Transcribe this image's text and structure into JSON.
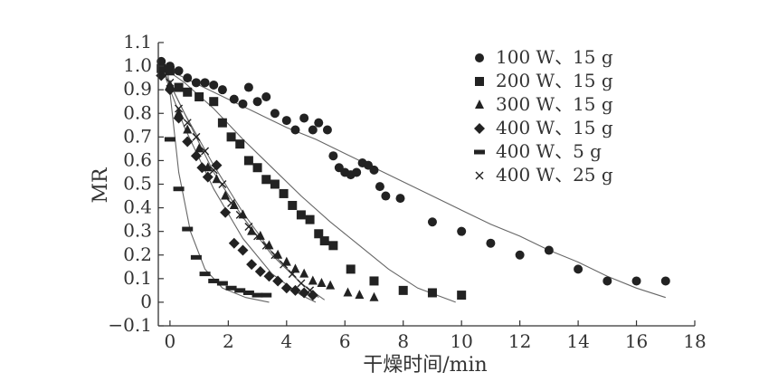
{
  "chart_data": {
    "type": "scatter",
    "title": "",
    "xlabel": "干燥时间/min",
    "ylabel": "MR",
    "xlim": [
      -0.4,
      18
    ],
    "ylim": [
      -0.1,
      1.1
    ],
    "xticks": [
      0,
      2,
      4,
      6,
      8,
      10,
      12,
      14,
      16,
      18
    ],
    "xtick_labels": [
      "0",
      "2",
      "4",
      "6",
      "8",
      "10",
      "12",
      "14",
      "16",
      "18"
    ],
    "yticks": [
      -0.1,
      0,
      0.1,
      0.2,
      0.3,
      0.4,
      0.5,
      0.6,
      0.7,
      0.8,
      0.9,
      1.0,
      1.1
    ],
    "ytick_labels": [
      "−0.1",
      "0",
      "0.1",
      "0.2",
      "0.3",
      "0.4",
      "0.5",
      "0.6",
      "0.7",
      "0.8",
      "0.9",
      "1.0",
      "1.1"
    ],
    "grid": false,
    "legend_position": "top-right",
    "series": [
      {
        "name": "100 W、15 g",
        "marker": "circle",
        "points": [
          [
            -0.3,
            1.02
          ],
          [
            0,
            1.0
          ],
          [
            0.3,
            0.98
          ],
          [
            0.6,
            0.95
          ],
          [
            0.9,
            0.93
          ],
          [
            1.2,
            0.93
          ],
          [
            1.5,
            0.92
          ],
          [
            1.8,
            0.9
          ],
          [
            2.2,
            0.86
          ],
          [
            2.5,
            0.84
          ],
          [
            2.7,
            0.91
          ],
          [
            3.0,
            0.85
          ],
          [
            3.3,
            0.87
          ],
          [
            3.6,
            0.8
          ],
          [
            4.0,
            0.77
          ],
          [
            4.3,
            0.73
          ],
          [
            4.6,
            0.78
          ],
          [
            4.9,
            0.73
          ],
          [
            5.1,
            0.76
          ],
          [
            5.4,
            0.73
          ],
          [
            5.6,
            0.62
          ],
          [
            5.8,
            0.57
          ],
          [
            6.0,
            0.55
          ],
          [
            6.2,
            0.54
          ],
          [
            6.4,
            0.55
          ],
          [
            6.6,
            0.59
          ],
          [
            6.8,
            0.58
          ],
          [
            7.0,
            0.56
          ],
          [
            7.2,
            0.49
          ],
          [
            7.4,
            0.45
          ],
          [
            7.9,
            0.44
          ],
          [
            9.0,
            0.34
          ],
          [
            10.0,
            0.3
          ],
          [
            11.0,
            0.25
          ],
          [
            12.0,
            0.2
          ],
          [
            13.0,
            0.22
          ],
          [
            14.0,
            0.14
          ],
          [
            15.0,
            0.09
          ],
          [
            16.0,
            0.09
          ],
          [
            17.0,
            0.09
          ]
        ],
        "fit": [
          [
            -0.3,
            1.0
          ],
          [
            1,
            0.92
          ],
          [
            2,
            0.86
          ],
          [
            3,
            0.8
          ],
          [
            4,
            0.74
          ],
          [
            5,
            0.69
          ],
          [
            6,
            0.63
          ],
          [
            7,
            0.57
          ],
          [
            8,
            0.51
          ],
          [
            9,
            0.45
          ],
          [
            10,
            0.39
          ],
          [
            11,
            0.33
          ],
          [
            12,
            0.28
          ],
          [
            13,
            0.22
          ],
          [
            14,
            0.17
          ],
          [
            15,
            0.11
          ],
          [
            16,
            0.06
          ],
          [
            17,
            0.02
          ]
        ]
      },
      {
        "name": "200 W、15 g",
        "marker": "square",
        "points": [
          [
            -0.3,
            0.99
          ],
          [
            0,
            0.98
          ],
          [
            0.3,
            0.91
          ],
          [
            0.6,
            0.89
          ],
          [
            1.0,
            0.87
          ],
          [
            1.5,
            0.85
          ],
          [
            1.8,
            0.76
          ],
          [
            2.1,
            0.7
          ],
          [
            2.4,
            0.67
          ],
          [
            2.7,
            0.6
          ],
          [
            3.0,
            0.57
          ],
          [
            3.3,
            0.52
          ],
          [
            3.6,
            0.5
          ],
          [
            3.9,
            0.46
          ],
          [
            4.2,
            0.41
          ],
          [
            4.5,
            0.37
          ],
          [
            4.8,
            0.35
          ],
          [
            5.1,
            0.29
          ],
          [
            5.3,
            0.26
          ],
          [
            5.6,
            0.24
          ],
          [
            6.2,
            0.14
          ],
          [
            7.0,
            0.09
          ],
          [
            8.0,
            0.05
          ],
          [
            9.0,
            0.04
          ],
          [
            10.0,
            0.03
          ]
        ],
        "fit": [
          [
            -0.3,
            1.0
          ],
          [
            0.5,
            0.93
          ],
          [
            1.5,
            0.82
          ],
          [
            2.5,
            0.69
          ],
          [
            3.5,
            0.57
          ],
          [
            4.5,
            0.45
          ],
          [
            5.5,
            0.34
          ],
          [
            6.5,
            0.24
          ],
          [
            7.5,
            0.14
          ],
          [
            8.5,
            0.06
          ],
          [
            9.8,
            0.0
          ]
        ]
      },
      {
        "name": "300 W、15 g",
        "marker": "triangle",
        "points": [
          [
            -0.3,
            0.99
          ],
          [
            0,
            0.92
          ],
          [
            0.3,
            0.8
          ],
          [
            0.6,
            0.73
          ],
          [
            1.0,
            0.65
          ],
          [
            1.3,
            0.57
          ],
          [
            1.6,
            0.52
          ],
          [
            1.9,
            0.45
          ],
          [
            2.2,
            0.41
          ],
          [
            2.5,
            0.37
          ],
          [
            2.8,
            0.3
          ],
          [
            3.1,
            0.28
          ],
          [
            3.4,
            0.24
          ],
          [
            3.7,
            0.2
          ],
          [
            4.0,
            0.17
          ],
          [
            4.3,
            0.14
          ],
          [
            4.6,
            0.12
          ],
          [
            4.9,
            0.09
          ],
          [
            5.2,
            0.08
          ],
          [
            5.5,
            0.07
          ],
          [
            6.1,
            0.04
          ],
          [
            6.5,
            0.03
          ],
          [
            7.0,
            0.02
          ]
        ],
        "fit": [
          [
            -0.3,
            1.0
          ],
          [
            0.5,
            0.8
          ],
          [
            1.5,
            0.55
          ],
          [
            2.5,
            0.36
          ],
          [
            3.5,
            0.2
          ],
          [
            4.5,
            0.08
          ],
          [
            5.3,
            0.01
          ]
        ]
      },
      {
        "name": "400 W、15 g",
        "marker": "diamond",
        "points": [
          [
            -0.3,
            0.96
          ],
          [
            0,
            0.9
          ],
          [
            0.3,
            0.78
          ],
          [
            0.6,
            0.68
          ],
          [
            0.9,
            0.62
          ],
          [
            1.1,
            0.57
          ],
          [
            1.3,
            0.53
          ],
          [
            1.6,
            0.58
          ],
          [
            1.9,
            0.38
          ],
          [
            2.2,
            0.25
          ],
          [
            2.5,
            0.22
          ],
          [
            2.8,
            0.16
          ],
          [
            3.1,
            0.13
          ],
          [
            3.4,
            0.11
          ],
          [
            3.7,
            0.09
          ],
          [
            4.0,
            0.06
          ],
          [
            4.3,
            0.05
          ],
          [
            4.6,
            0.04
          ],
          [
            4.9,
            0.03
          ]
        ],
        "fit": [
          [
            -0.3,
            1.0
          ],
          [
            0.5,
            0.74
          ],
          [
            1.5,
            0.48
          ],
          [
            2.5,
            0.27
          ],
          [
            3.5,
            0.12
          ],
          [
            4.5,
            0.03
          ],
          [
            5.0,
            0.0
          ]
        ]
      },
      {
        "name": "400 W、5 g",
        "marker": "dash",
        "points": [
          [
            0,
            0.69
          ],
          [
            0.3,
            0.48
          ],
          [
            0.6,
            0.31
          ],
          [
            0.9,
            0.19
          ],
          [
            1.2,
            0.12
          ],
          [
            1.5,
            0.09
          ],
          [
            1.8,
            0.08
          ],
          [
            2.1,
            0.06
          ],
          [
            2.4,
            0.05
          ],
          [
            2.7,
            0.04
          ],
          [
            3.0,
            0.03
          ],
          [
            3.3,
            0.03
          ]
        ],
        "fit": [
          [
            -0.1,
            1.0
          ],
          [
            0.3,
            0.55
          ],
          [
            0.7,
            0.3
          ],
          [
            1.2,
            0.14
          ],
          [
            1.8,
            0.06
          ],
          [
            2.6,
            0.02
          ],
          [
            3.4,
            0.0
          ]
        ]
      },
      {
        "name": "400 W、25 g",
        "marker": "cross",
        "points": [
          [
            -0.3,
            0.97
          ],
          [
            0,
            0.93
          ],
          [
            0.3,
            0.82
          ],
          [
            0.6,
            0.76
          ],
          [
            0.9,
            0.7
          ],
          [
            1.2,
            0.64
          ],
          [
            1.5,
            0.56
          ],
          [
            1.8,
            0.5
          ],
          [
            2.1,
            0.42
          ],
          [
            2.4,
            0.37
          ],
          [
            2.7,
            0.32
          ],
          [
            3.0,
            0.28
          ],
          [
            3.3,
            0.24
          ],
          [
            3.6,
            0.2
          ],
          [
            3.9,
            0.16
          ],
          [
            4.2,
            0.12
          ],
          [
            4.5,
            0.08
          ],
          [
            4.8,
            0.05
          ]
        ],
        "fit": [
          [
            -0.3,
            1.0
          ],
          [
            0.5,
            0.8
          ],
          [
            1.5,
            0.58
          ],
          [
            2.5,
            0.38
          ],
          [
            3.5,
            0.21
          ],
          [
            4.5,
            0.08
          ],
          [
            5.1,
            0.02
          ]
        ]
      }
    ]
  }
}
